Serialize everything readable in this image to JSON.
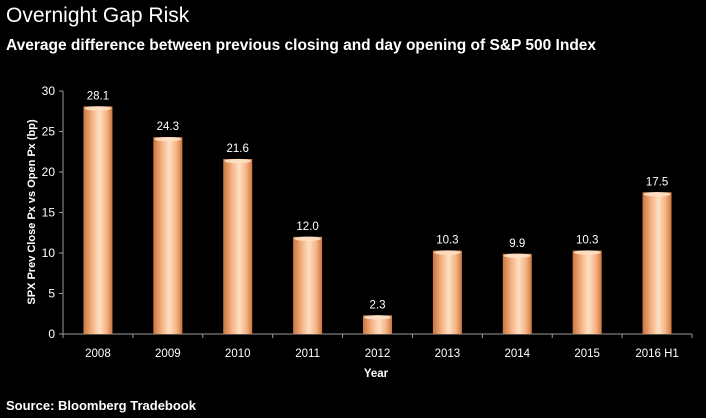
{
  "header": {
    "title": "Overnight Gap Risk",
    "subtitle": "Average difference between previous closing and day opening of S&P 500 Index"
  },
  "footer": {
    "source": "Source: Bloomberg Tradebook"
  },
  "colors": {
    "background": "#000000",
    "bar_light": "#fde0c4",
    "bar_mid": "#f6b283",
    "bar_dark": "#d07f4c",
    "axis": "#9a9a9a",
    "text": "#ffffff"
  },
  "chart_data": {
    "type": "bar",
    "categories": [
      "2008",
      "2009",
      "2010",
      "2011",
      "2012",
      "2013",
      "2014",
      "2015",
      "2016 H1"
    ],
    "values": [
      28.1,
      24.3,
      21.6,
      12.0,
      2.3,
      10.3,
      9.9,
      10.3,
      17.5
    ],
    "data_labels": [
      "28.1",
      "24.3",
      "21.6",
      "12.0",
      "2.3",
      "10.3",
      "9.9",
      "10.3",
      "17.5"
    ],
    "title": "Overnight Gap Risk",
    "subtitle": "Average difference between previous closing and day opening of S&P 500 Index",
    "xlabel": "Year",
    "ylabel": "SPX Prev Close Px vs Open Px (bp)",
    "ylim": [
      0,
      30
    ],
    "yticks": [
      0,
      5,
      10,
      15,
      20,
      25,
      30
    ],
    "grid": false,
    "legend": "none"
  }
}
